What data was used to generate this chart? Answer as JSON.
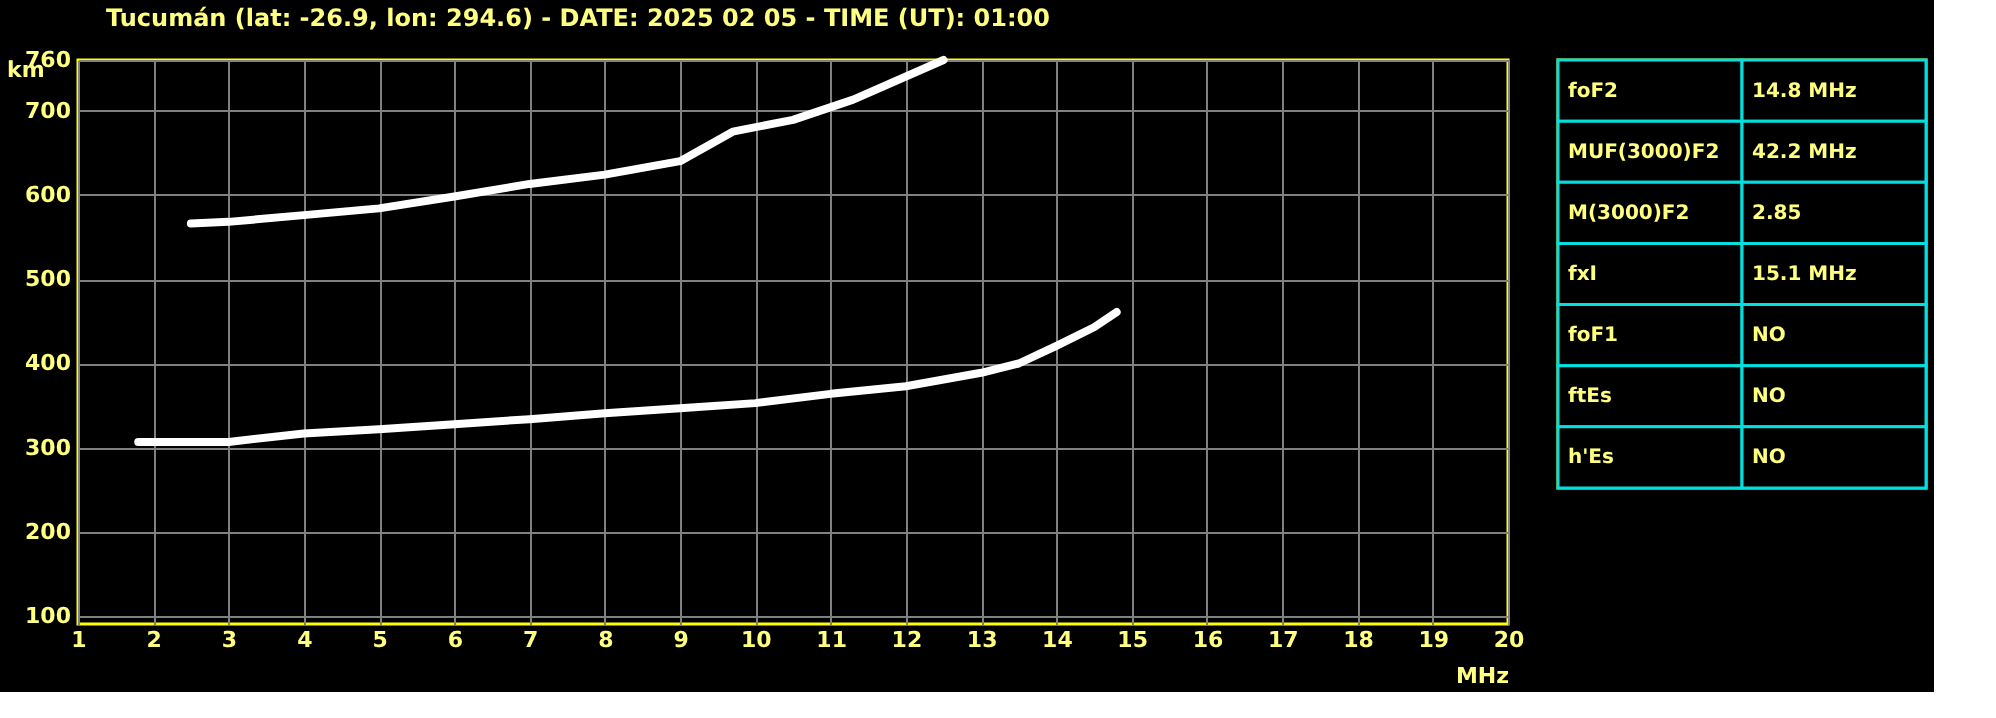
{
  "chart_data": [
    {
      "type": "line",
      "title": "Tucumán (lat: -26.9, lon: 294.6) - DATE: 2025 02 05 - TIME (UT): 01:00",
      "xlabel": "MHz",
      "ylabel": "km",
      "xlim": [
        1,
        20
      ],
      "ylim": [
        91,
        760
      ],
      "xticks": [
        1,
        2,
        3,
        4,
        5,
        6,
        7,
        8,
        9,
        10,
        11,
        12,
        13,
        14,
        15,
        16,
        17,
        18,
        19,
        20
      ],
      "yticks": [
        100,
        200,
        300,
        400,
        500,
        600,
        700,
        760
      ],
      "grid": true,
      "series": [
        {
          "color": "#ffffff",
          "x": [
            1.8,
            2,
            3,
            4,
            5,
            6,
            7,
            8,
            9,
            10,
            11,
            12,
            13,
            13.5,
            14,
            14.5,
            14.8
          ],
          "values": [
            307,
            307,
            307,
            317,
            322,
            328,
            334,
            341,
            347,
            353,
            364,
            373,
            389,
            400,
            421,
            443,
            461
          ]
        },
        {
          "color": "#ffffff",
          "x": [
            2.5,
            3,
            4,
            5,
            6,
            7,
            8,
            9,
            9.7,
            10.5,
            11.3,
            12.5
          ],
          "values": [
            566,
            568,
            576,
            584,
            598,
            613,
            624,
            640,
            675,
            689,
            713,
            760
          ]
        }
      ]
    },
    {
      "type": "other",
      "categories": [
        "foF2",
        "MUF(3000)F2",
        "M(3000)F2",
        "fxI",
        "foF1",
        "ftEs",
        "h'Es"
      ],
      "value_labels": [
        "14.8 MHz",
        "42.2 MHz",
        "2.85",
        "15.1 MHz",
        "NO",
        "NO",
        "NO"
      ]
    }
  ]
}
